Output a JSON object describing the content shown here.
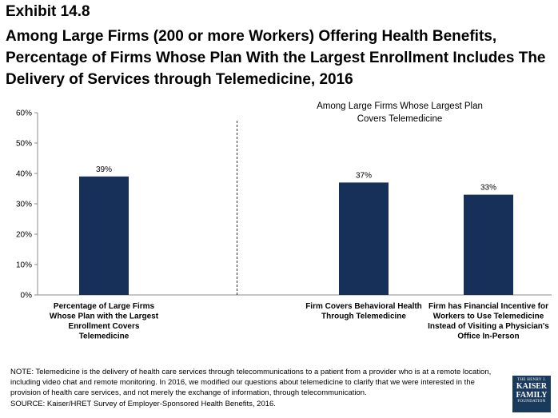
{
  "header": {
    "exhibit": "Exhibit 14.8",
    "title": "Among Large Firms (200 or more Workers) Offering Health Benefits, Percentage of Firms Whose Plan With the Largest Enrollment Includes The Delivery of Services through Telemedicine, 2016"
  },
  "chart_data": {
    "type": "bar",
    "subtitle": "Among Large Firms Whose Largest Plan Covers Telemedicine",
    "categories": [
      "Percentage of Large Firms Whose Plan with the Largest Enrollment Covers Telemedicine",
      "Firm Covers Behavioral Health Through Telemedicine",
      "Firm has Financial Incentive for Workers to Use Telemedicine Instead of Visiting a Physician's Office In-Person"
    ],
    "category_lines": [
      [
        "Percentage of Large Firms",
        "Whose Plan with the Largest",
        "Enrollment Covers",
        "Telemedicine"
      ],
      [
        "Firm Covers Behavioral Health",
        "Through Telemedicine"
      ],
      [
        "Firm has Financial Incentive for",
        "Workers to Use Telemedicine",
        "Instead of Visiting a Physician's",
        "Office In-Person"
      ]
    ],
    "subtitle_lines": [
      "Among Large Firms Whose Largest Plan",
      "Covers Telemedicine"
    ],
    "values": [
      39,
      37,
      33
    ],
    "value_labels": [
      "39%",
      "37%",
      "33%"
    ],
    "ylim": [
      0,
      60
    ],
    "yticks": [
      0,
      10,
      20,
      30,
      40,
      50,
      60
    ],
    "ytick_labels": [
      "0%",
      "10%",
      "20%",
      "30%",
      "40%",
      "50%",
      "60%"
    ],
    "bar_color": "#16305a",
    "grid": false,
    "divider_after_category": 0
  },
  "footer": {
    "note": "NOTE: Telemedicine is the delivery of health care services through telecommunications to a patient from a provider who is at a remote location, including video chat and remote monitoring. In 2016, we modified our questions about telemedicine to clarify that we were interested in the provision of health care services, and not merely the exchange of information, through telecommunication.",
    "source": "SOURCE: Kaiser/HRET Survey of Employer-Sponsored Health Benefits, 2016.",
    "logo": [
      "THE HENRY J.",
      "KAISER",
      "FAMILY",
      "FOUNDATION"
    ]
  }
}
